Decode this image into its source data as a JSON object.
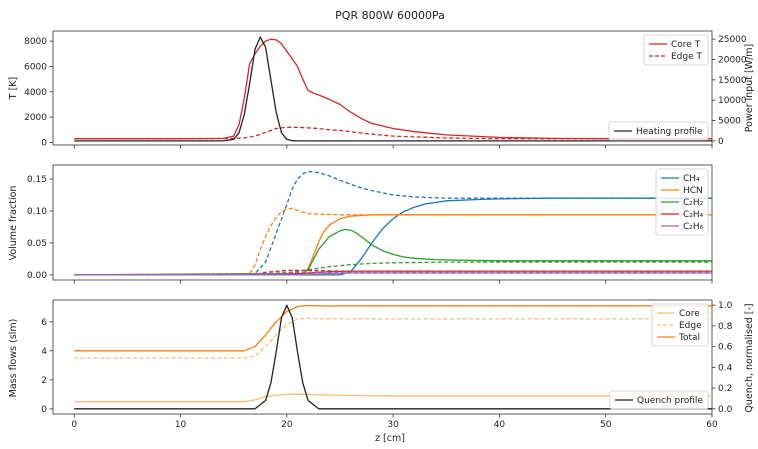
{
  "title": "PQR 800W 60000Pa",
  "chart_data": [
    {
      "type": "line",
      "xlabel": "",
      "ylabel": "T [K]",
      "y2label": "Power input [W/m]",
      "xlim": [
        -2,
        60
      ],
      "ylim": [
        -200,
        8800
      ],
      "y2lim": [
        -1000,
        27000
      ],
      "yticks": [
        0,
        2000,
        4000,
        6000,
        8000
      ],
      "y2ticks": [
        0,
        5000,
        10000,
        15000,
        20000,
        25000
      ],
      "series": [
        {
          "name": "Core T",
          "color": "#d62728",
          "dash": false,
          "axis": "left",
          "x": [
            0,
            10,
            14,
            15,
            15.5,
            16,
            16.5,
            17,
            17.5,
            18,
            18.5,
            19,
            19.5,
            20,
            20.5,
            21,
            21.5,
            22,
            22.5,
            23,
            24,
            25,
            26,
            27,
            28,
            30,
            32,
            35,
            40,
            45,
            50,
            55,
            60
          ],
          "y": [
            300,
            300,
            320,
            500,
            1400,
            3500,
            6200,
            7000,
            7600,
            8000,
            8150,
            8100,
            7800,
            7200,
            6600,
            6000,
            5000,
            4100,
            3900,
            3750,
            3400,
            3000,
            2400,
            1900,
            1500,
            1100,
            850,
            600,
            400,
            320,
            300,
            300,
            300
          ]
        },
        {
          "name": "Edge T",
          "color": "#d62728",
          "dash": true,
          "axis": "left",
          "x": [
            0,
            10,
            15,
            16,
            17,
            18,
            19,
            20,
            21,
            22,
            23,
            24,
            25,
            26,
            27,
            28,
            30,
            35,
            40,
            45,
            50,
            55,
            60
          ],
          "y": [
            300,
            300,
            310,
            350,
            500,
            800,
            1100,
            1200,
            1200,
            1150,
            1100,
            1000,
            950,
            850,
            750,
            650,
            500,
            350,
            300,
            300,
            300,
            300,
            300
          ]
        },
        {
          "name": "Heating profile",
          "color": "#222222",
          "dash": false,
          "axis": "right",
          "x": [
            0,
            14,
            15,
            15.5,
            16,
            16.5,
            17,
            17.5,
            18,
            18.5,
            19,
            19.5,
            20,
            20.5,
            21,
            60
          ],
          "y": [
            0,
            0,
            400,
            2000,
            6500,
            14000,
            22500,
            25500,
            23000,
            15000,
            7000,
            2000,
            400,
            50,
            0,
            0
          ]
        }
      ]
    },
    {
      "type": "line",
      "xlabel": "",
      "ylabel": "Volume fraction",
      "xlim": [
        -2,
        60
      ],
      "ylim": [
        -0.008,
        0.172
      ],
      "yticks": [
        0.0,
        0.05,
        0.1,
        0.15
      ],
      "legend": [
        "CH₄",
        "HCN",
        "C₂H₂",
        "C₂H₄",
        "C₂H₆"
      ],
      "series": [
        {
          "name": "CH₄",
          "color": "#1f77b4",
          "dash": false,
          "x": [
            0,
            25,
            26,
            27,
            28,
            29,
            30,
            31,
            32,
            33,
            35,
            38,
            40,
            45,
            60
          ],
          "y": [
            0,
            0,
            0.005,
            0.025,
            0.05,
            0.072,
            0.088,
            0.099,
            0.106,
            0.111,
            0.116,
            0.118,
            0.119,
            0.12,
            0.12
          ]
        },
        {
          "name": "CH₄ (edge)",
          "color": "#1f77b4",
          "dash": true,
          "x": [
            0,
            17,
            18,
            19,
            20,
            20.5,
            21,
            21.5,
            22,
            23,
            24,
            25,
            26,
            27,
            28,
            30,
            32,
            35,
            40,
            45,
            60
          ],
          "y": [
            0,
            0.002,
            0.02,
            0.065,
            0.11,
            0.135,
            0.15,
            0.158,
            0.162,
            0.16,
            0.155,
            0.148,
            0.142,
            0.136,
            0.132,
            0.125,
            0.122,
            0.12,
            0.12,
            0.12,
            0.12
          ]
        },
        {
          "name": "HCN",
          "color": "#ff7f0e",
          "dash": false,
          "x": [
            0,
            21.5,
            22,
            22.5,
            23,
            23.5,
            24,
            25,
            26,
            27,
            28,
            30,
            35,
            40,
            60
          ],
          "y": [
            0,
            0.002,
            0.01,
            0.03,
            0.052,
            0.068,
            0.078,
            0.088,
            0.092,
            0.093,
            0.094,
            0.094,
            0.094,
            0.094,
            0.094
          ]
        },
        {
          "name": "HCN (edge)",
          "color": "#ff7f0e",
          "dash": true,
          "x": [
            0,
            16.5,
            17,
            17.5,
            18,
            18.5,
            19,
            19.5,
            20,
            20.5,
            21,
            21.5,
            22,
            23,
            25,
            30,
            40,
            60
          ],
          "y": [
            0,
            0.002,
            0.015,
            0.04,
            0.06,
            0.077,
            0.09,
            0.099,
            0.103,
            0.104,
            0.101,
            0.098,
            0.096,
            0.095,
            0.094,
            0.094,
            0.094,
            0.094
          ]
        },
        {
          "name": "C₂H₂",
          "color": "#2ca02c",
          "dash": false,
          "x": [
            0,
            21.5,
            22,
            23,
            24,
            25,
            25.5,
            26,
            26.5,
            27,
            28,
            29,
            30,
            31,
            32,
            34,
            36,
            40,
            45,
            60
          ],
          "y": [
            0,
            0.002,
            0.008,
            0.04,
            0.06,
            0.069,
            0.071,
            0.07,
            0.066,
            0.06,
            0.047,
            0.038,
            0.032,
            0.028,
            0.026,
            0.024,
            0.023,
            0.022,
            0.022,
            0.022
          ]
        },
        {
          "name": "C₂H₂ (edge)",
          "color": "#2ca02c",
          "dash": true,
          "x": [
            0,
            19,
            20,
            22,
            24,
            26,
            28,
            30,
            35,
            40,
            60
          ],
          "y": [
            0,
            0.001,
            0.003,
            0.008,
            0.013,
            0.016,
            0.018,
            0.019,
            0.02,
            0.02,
            0.02
          ]
        },
        {
          "name": "C₂H₄",
          "color": "#d62728",
          "dash": false,
          "x": [
            0,
            18,
            20,
            22,
            24,
            26,
            28,
            30,
            40,
            60
          ],
          "y": [
            0,
            0,
            0.001,
            0.003,
            0.005,
            0.006,
            0.006,
            0.006,
            0.006,
            0.006
          ]
        },
        {
          "name": "C₂H₄ (edge)",
          "color": "#d62728",
          "dash": true,
          "x": [
            0,
            17,
            18,
            20,
            22,
            25,
            28,
            30,
            40,
            60
          ],
          "y": [
            0,
            0.001,
            0.004,
            0.007,
            0.007,
            0.006,
            0.006,
            0.006,
            0.006,
            0.006
          ]
        },
        {
          "name": "C₂H₆",
          "color": "#9467bd",
          "dash": false,
          "x": [
            0,
            20,
            22,
            24,
            26,
            30,
            40,
            60
          ],
          "y": [
            0,
            0,
            0.001,
            0.002,
            0.003,
            0.003,
            0.003,
            0.003
          ]
        },
        {
          "name": "C₂H₆ (edge)",
          "color": "#9467bd",
          "dash": true,
          "x": [
            0,
            17,
            18,
            20,
            22,
            25,
            30,
            40,
            60
          ],
          "y": [
            0,
            0.001,
            0.002,
            0.004,
            0.004,
            0.004,
            0.004,
            0.004,
            0.004
          ]
        }
      ]
    },
    {
      "type": "line",
      "xlabel": "z [cm]",
      "ylabel": "Mass flows (slm)",
      "y2label": "Quench, normalised [-]",
      "xlim": [
        -2,
        60
      ],
      "xticks": [
        0,
        10,
        20,
        30,
        40,
        50,
        60
      ],
      "ylim": [
        -0.35,
        7.5
      ],
      "y2lim": [
        -0.05,
        1.05
      ],
      "yticks": [
        0,
        2,
        4,
        6
      ],
      "y2ticks": [
        0.0,
        0.2,
        0.4,
        0.6,
        0.8,
        1.0
      ],
      "series": [
        {
          "name": "Core",
          "color": "#ffbb78",
          "dash": false,
          "axis": "left",
          "x": [
            0,
            16,
            17,
            18,
            19,
            20,
            21,
            22,
            23,
            25,
            30,
            40,
            50,
            60
          ],
          "y": [
            0.5,
            0.5,
            0.62,
            0.85,
            0.95,
            1.0,
            1.02,
            1.0,
            0.97,
            0.93,
            0.9,
            0.9,
            0.9,
            0.9
          ]
        },
        {
          "name": "Edge",
          "color": "#ffbb78",
          "dash": true,
          "axis": "left",
          "x": [
            0,
            16,
            17,
            18,
            19,
            20,
            21,
            22,
            23,
            25,
            30,
            40,
            50,
            60
          ],
          "y": [
            3.5,
            3.5,
            3.65,
            4.3,
            5.1,
            5.8,
            6.2,
            6.25,
            6.2,
            6.2,
            6.2,
            6.2,
            6.2,
            6.2
          ]
        },
        {
          "name": "Total",
          "color": "#ff7f0e",
          "dash": false,
          "axis": "left",
          "x": [
            0,
            16,
            17,
            18,
            19,
            20,
            21,
            22,
            23,
            24,
            25,
            30,
            40,
            50,
            60
          ],
          "y": [
            4.0,
            4.0,
            4.3,
            5.1,
            6.0,
            6.7,
            7.05,
            7.12,
            7.1,
            7.08,
            7.1,
            7.1,
            7.1,
            7.1,
            7.1
          ]
        },
        {
          "name": "Quench profile",
          "color": "#222222",
          "dash": false,
          "axis": "right",
          "x": [
            0,
            17,
            18,
            18.5,
            19,
            19.5,
            20,
            20.5,
            21,
            21.5,
            22,
            23,
            60
          ],
          "y": [
            0,
            0,
            0.08,
            0.25,
            0.55,
            0.88,
            1.0,
            0.88,
            0.55,
            0.25,
            0.08,
            0,
            0
          ]
        }
      ]
    }
  ]
}
